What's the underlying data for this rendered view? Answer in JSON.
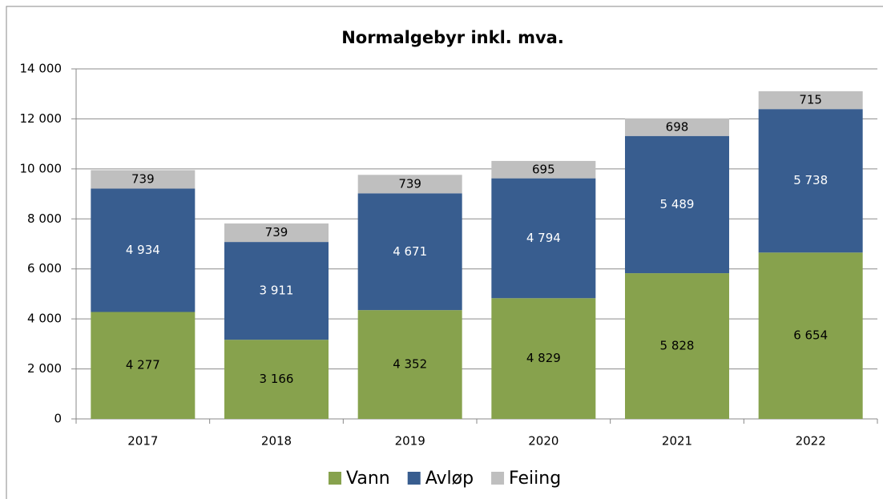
{
  "chart_data": {
    "type": "stacked_bar",
    "title": "Normalgebyr inkl. mva.",
    "categories": [
      "2017",
      "2018",
      "2019",
      "2020",
      "2021",
      "2022"
    ],
    "series": [
      {
        "name": "Vann",
        "color": "#87a24d",
        "values": [
          4277,
          3166,
          4352,
          4829,
          5828,
          6654
        ],
        "value_labels": [
          "4 277",
          "3 166",
          "4 352",
          "4 829",
          "5 828",
          "6 654"
        ]
      },
      {
        "name": "Avløp",
        "color": "#385d8f",
        "values": [
          4934,
          3911,
          4671,
          4794,
          5489,
          5738
        ],
        "value_labels": [
          "4 934",
          "3 911",
          "4 671",
          "4 794",
          "5 489",
          "5 738"
        ]
      },
      {
        "name": "Feiing",
        "color": "#bfbfbf",
        "values": [
          739,
          739,
          739,
          695,
          698,
          715
        ],
        "value_labels": [
          "739",
          "739",
          "739",
          "695",
          "698",
          "715"
        ]
      }
    ],
    "ylim": [
      0,
      14000
    ],
    "yticks": [
      0,
      {
        "value": 2000,
        "label": "2 000"
      },
      {
        "value": 4000,
        "label": "4 000"
      },
      {
        "value": 6000,
        "label": "6 000"
      },
      {
        "value": 8000,
        "label": "8 000"
      },
      {
        "value": 10000,
        "label": "10 000"
      },
      {
        "value": 12000,
        "label": "12 000"
      },
      {
        "value": 14000,
        "label": "14 000"
      }
    ],
    "grid": true,
    "legend": "bottom"
  }
}
